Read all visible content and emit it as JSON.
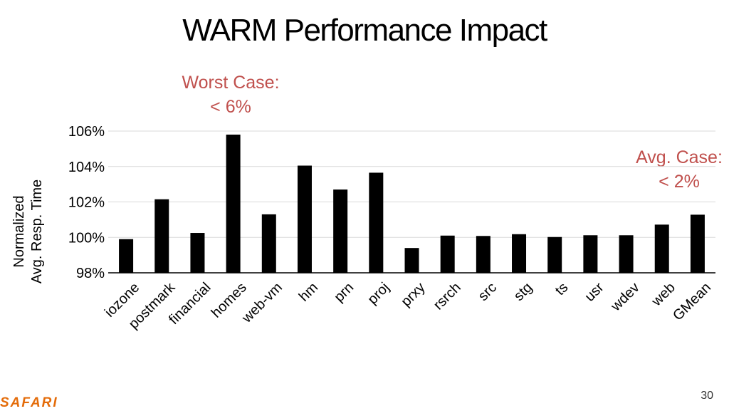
{
  "slide": {
    "title": "WARM Performance Impact",
    "callout_worst_line1": "Worst Case:",
    "callout_worst_line2": "< 6%",
    "callout_avg_line1": "Avg. Case:",
    "callout_avg_line2": "< 2%",
    "callout_color": "#C0504D",
    "logo_text": "SAFARI",
    "logo_color": "#E46C0A",
    "page_number": "30"
  },
  "chart_data": {
    "type": "bar",
    "ylabel_line1": "Normalized",
    "ylabel_line2": "Avg. Resp. Time",
    "ylim": [
      98,
      106
    ],
    "yticks": [
      98,
      100,
      102,
      104,
      106
    ],
    "ytick_labels": [
      "98%",
      "100%",
      "102%",
      "104%",
      "106%"
    ],
    "grid": true,
    "bar_color": "#000000",
    "categories": [
      "iozone",
      "postmark",
      "financial",
      "homes",
      "web-vm",
      "hm",
      "prn",
      "proj",
      "prxy",
      "rsrch",
      "src",
      "stg",
      "ts",
      "usr",
      "wdev",
      "web",
      "GMean"
    ],
    "values": [
      99.9,
      102.15,
      100.25,
      105.8,
      101.3,
      104.05,
      102.7,
      103.65,
      99.4,
      100.1,
      100.08,
      100.18,
      100.02,
      100.12,
      100.12,
      100.72,
      101.28
    ]
  }
}
